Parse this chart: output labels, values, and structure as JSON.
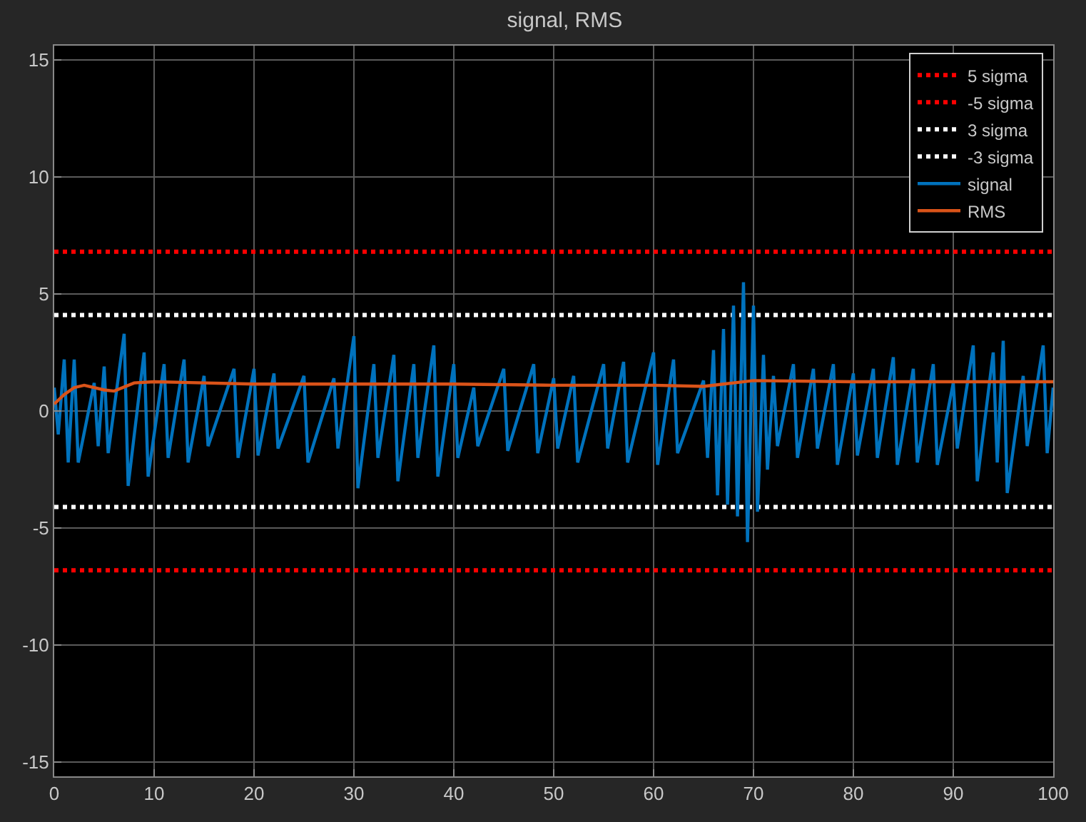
{
  "chart_data": {
    "type": "line",
    "title": "signal, RMS",
    "xlim": [
      0,
      100
    ],
    "xticks": [
      0,
      10,
      20,
      30,
      40,
      50,
      60,
      70,
      80,
      90,
      100
    ],
    "ylim": [
      -15.6,
      15.6
    ],
    "yticks": [
      -15,
      -10,
      -5,
      0,
      5,
      10,
      15
    ],
    "grid": true,
    "legend": "top right",
    "marker": "none",
    "series": [
      {
        "name": "5 sigma",
        "type": "step",
        "color": "#ff0000",
        "line_style": "dotted",
        "x": [
          0,
          100
        ],
        "values": [
          6.8,
          6.8
        ]
      },
      {
        "name": "-5 sigma",
        "type": "step",
        "color": "#ff0000",
        "line_style": "dotted",
        "x": [
          0,
          100
        ],
        "values": [
          -6.8,
          -6.8
        ]
      },
      {
        "name": "3 sigma",
        "type": "step",
        "color": "#ffffff",
        "line_style": "dotted",
        "x": [
          0,
          100
        ],
        "values": [
          4.1,
          4.1
        ]
      },
      {
        "name": "-3 sigma",
        "type": "step",
        "color": "#ffffff",
        "line_style": "dotted",
        "x": [
          0,
          100
        ],
        "values": [
          -4.1,
          -4.1
        ]
      },
      {
        "name": "signal",
        "color": "#0072bd",
        "line_style": "solid",
        "x": [
          0,
          0.4,
          1,
          1.4,
          2,
          2.4,
          4,
          4.4,
          5,
          5.4,
          7,
          7.4,
          9,
          9.4,
          11,
          11.4,
          13,
          13.4,
          15,
          15.4,
          18,
          18.4,
          20,
          20.4,
          22,
          22.4,
          25,
          25.4,
          28,
          28.4,
          30,
          30.4,
          32,
          32.4,
          34,
          34.4,
          36,
          36.4,
          38,
          38.4,
          40,
          40.4,
          42,
          42.4,
          45,
          45.4,
          48,
          48.4,
          50,
          50.4,
          52,
          52.4,
          55,
          55.4,
          57,
          57.4,
          60,
          60.4,
          62,
          62.4,
          65,
          65.4,
          66,
          66.4,
          67,
          67.4,
          68,
          68.4,
          69,
          69.4,
          70,
          70.4,
          71,
          71.4,
          72,
          72.4,
          74,
          74.4,
          76,
          76.4,
          78,
          78.4,
          80,
          80.4,
          82,
          82.4,
          84,
          84.4,
          86,
          86.4,
          88,
          88.4,
          90,
          90.4,
          92,
          92.4,
          94,
          94.4,
          95,
          95.4,
          97,
          97.4,
          99,
          99.4,
          100
        ],
        "values": [
          1,
          -1,
          2.2,
          -2.2,
          2.2,
          -2.2,
          1.2,
          -1.5,
          1.9,
          -1.8,
          3.3,
          -3.2,
          2.5,
          -2.8,
          2.0,
          -2.0,
          2.2,
          -2.2,
          1.5,
          -1.5,
          1.8,
          -2.0,
          1.8,
          -1.9,
          1.6,
          -1.6,
          1.5,
          -2.2,
          1.4,
          -1.6,
          3.2,
          -3.3,
          2.0,
          -2.0,
          2.4,
          -3.0,
          2.0,
          -2.0,
          2.8,
          -2.8,
          2.0,
          -2.0,
          1.0,
          -1.5,
          1.8,
          -1.7,
          2.0,
          -1.8,
          1.4,
          -1.6,
          1.5,
          -2.2,
          2.0,
          -1.6,
          2.1,
          -2.2,
          2.5,
          -2.3,
          2.2,
          -1.8,
          1.3,
          -2.0,
          2.6,
          -3.6,
          3.5,
          -4.0,
          4.5,
          -4.5,
          5.5,
          -5.6,
          4.5,
          -4.3,
          2.4,
          -2.5,
          1.5,
          -1.5,
          2.0,
          -2.0,
          1.8,
          -1.6,
          2.0,
          -2.3,
          1.6,
          -1.9,
          1.8,
          -2.0,
          2.3,
          -2.3,
          1.8,
          -2.2,
          2.0,
          -2.3,
          1.2,
          -1.6,
          2.8,
          -3.0,
          2.5,
          -2.2,
          3.0,
          -3.5,
          1.5,
          -1.5,
          2.8,
          -1.8,
          1.0
        ]
      },
      {
        "name": "RMS",
        "color": "#d95319",
        "line_style": "solid",
        "x": [
          0,
          1,
          2,
          3,
          5,
          6,
          8,
          10,
          20,
          40,
          50,
          60,
          65,
          68,
          70,
          80,
          100
        ],
        "values": [
          0.3,
          0.7,
          1.0,
          1.1,
          0.9,
          0.85,
          1.2,
          1.25,
          1.15,
          1.15,
          1.1,
          1.1,
          1.05,
          1.2,
          1.3,
          1.25,
          1.25
        ]
      }
    ]
  }
}
